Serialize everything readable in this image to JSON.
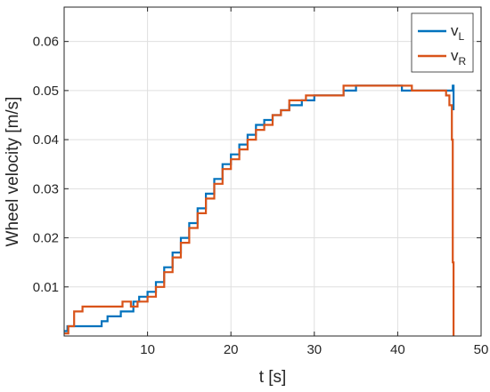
{
  "chart_data": {
    "type": "line",
    "xlabel": "t [s]",
    "ylabel": "Wheel velocity [m/s]",
    "xlim": [
      0,
      50
    ],
    "ylim": [
      0,
      0.067
    ],
    "xticks": [
      10,
      20,
      30,
      40,
      50
    ],
    "xtick_labels": [
      "10",
      "20",
      "30",
      "40",
      "50"
    ],
    "yticks": [
      0.01,
      0.02,
      0.03,
      0.04,
      0.05,
      0.06
    ],
    "ytick_labels": [
      "0.01",
      "0.02",
      "0.03",
      "0.04",
      "0.05",
      "0.06"
    ],
    "grid": true,
    "legend_position": "top-right",
    "step": true,
    "series": [
      {
        "name_main": "v",
        "name_sub": "L",
        "color": "#0072bd",
        "points": [
          [
            0,
            0.001
          ],
          [
            0.4,
            0.002
          ],
          [
            4.5,
            0.003
          ],
          [
            5.2,
            0.004
          ],
          [
            6.8,
            0.005
          ],
          [
            8.3,
            0.007
          ],
          [
            9,
            0.008
          ],
          [
            10,
            0.009
          ],
          [
            11,
            0.011
          ],
          [
            12,
            0.014
          ],
          [
            13,
            0.017
          ],
          [
            14,
            0.02
          ],
          [
            15,
            0.023
          ],
          [
            16,
            0.026
          ],
          [
            17,
            0.029
          ],
          [
            18,
            0.032
          ],
          [
            19,
            0.035
          ],
          [
            20,
            0.037
          ],
          [
            21,
            0.039
          ],
          [
            22,
            0.041
          ],
          [
            23,
            0.043
          ],
          [
            24,
            0.044
          ],
          [
            25,
            0.045
          ],
          [
            26,
            0.046
          ],
          [
            27,
            0.047
          ],
          [
            28.5,
            0.048
          ],
          [
            30,
            0.049
          ],
          [
            33.5,
            0.05
          ],
          [
            35,
            0.051
          ],
          [
            40.5,
            0.05
          ],
          [
            46.4,
            0.05
          ],
          [
            46.6,
            0.051
          ],
          [
            46.7,
            0.046
          ]
        ]
      },
      {
        "name_main": "v",
        "name_sub": "R",
        "color": "#d95319",
        "points": [
          [
            0,
            0.0005
          ],
          [
            0.5,
            0.002
          ],
          [
            1.2,
            0.005
          ],
          [
            2.2,
            0.006
          ],
          [
            7,
            0.007
          ],
          [
            8,
            0.006
          ],
          [
            8.8,
            0.007
          ],
          [
            10,
            0.008
          ],
          [
            11,
            0.01
          ],
          [
            12,
            0.013
          ],
          [
            13,
            0.016
          ],
          [
            14,
            0.019
          ],
          [
            15,
            0.022
          ],
          [
            16,
            0.025
          ],
          [
            17,
            0.028
          ],
          [
            18,
            0.031
          ],
          [
            19,
            0.034
          ],
          [
            20,
            0.036
          ],
          [
            21,
            0.038
          ],
          [
            22,
            0.04
          ],
          [
            23,
            0.042
          ],
          [
            24,
            0.043
          ],
          [
            25,
            0.045
          ],
          [
            26,
            0.046
          ],
          [
            27,
            0.048
          ],
          [
            29,
            0.049
          ],
          [
            33.5,
            0.051
          ],
          [
            41.7,
            0.05
          ],
          [
            45.8,
            0.049
          ],
          [
            46.2,
            0.047
          ],
          [
            46.5,
            0.04
          ],
          [
            46.6,
            0.015
          ],
          [
            46.7,
            0
          ]
        ]
      }
    ]
  }
}
